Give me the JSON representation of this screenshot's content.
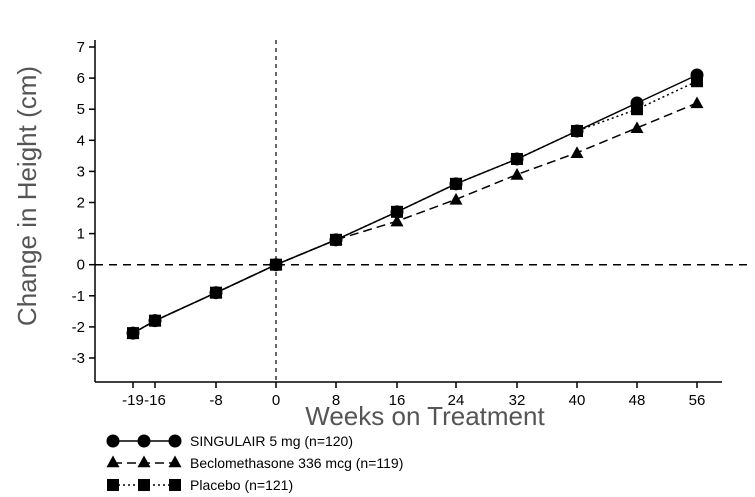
{
  "chart_data": {
    "type": "line",
    "title": "",
    "xlabel": "Weeks on Treatment",
    "ylabel": "Change in Height (cm)",
    "x_ticks": [
      "-19",
      "-16",
      "-8",
      "0",
      "8",
      "16",
      "24",
      "32",
      "40",
      "48",
      "56"
    ],
    "x_tick_values": [
      -19,
      -16,
      -8,
      0,
      8,
      16,
      24,
      32,
      40,
      48,
      56
    ],
    "y_ticks": [
      "-3",
      "-2",
      "-1",
      "0",
      "1",
      "2",
      "3",
      "4",
      "5",
      "6",
      "7"
    ],
    "ylim": [
      -3,
      7
    ],
    "legend_position": "bottom-left",
    "grid": false,
    "reference_lines": [
      {
        "axis": "x",
        "value": 0,
        "style": "dashed"
      },
      {
        "axis": "y",
        "value": 0,
        "style": "dashed"
      }
    ],
    "series": [
      {
        "name": "SINGULAIR 5 mg (n=120)",
        "marker": "circle",
        "line": "solid",
        "x": [
          -19,
          -16,
          -8,
          0,
          8,
          16,
          24,
          32,
          40,
          48,
          56
        ],
        "y": [
          -2.2,
          -1.8,
          -0.9,
          0,
          0.8,
          1.7,
          2.6,
          3.4,
          4.3,
          5.2,
          6.1
        ]
      },
      {
        "name": "Beclomethasone 336 mcg (n=119)",
        "marker": "triangle",
        "line": "dashed",
        "x": [
          -19,
          -16,
          -8,
          0,
          8,
          16,
          24,
          32,
          40,
          48,
          56
        ],
        "y": [
          -2.2,
          -1.8,
          -0.9,
          0,
          0.8,
          1.4,
          2.1,
          2.9,
          3.6,
          4.4,
          5.2
        ]
      },
      {
        "name": "Placebo (n=121)",
        "marker": "square",
        "line": "dotted",
        "x": [
          -19,
          -16,
          -8,
          0,
          8,
          16,
          24,
          32,
          40,
          48,
          56
        ],
        "y": [
          -2.2,
          -1.8,
          -0.9,
          0,
          0.8,
          1.7,
          2.6,
          3.4,
          4.3,
          5.0,
          5.9
        ]
      }
    ]
  }
}
